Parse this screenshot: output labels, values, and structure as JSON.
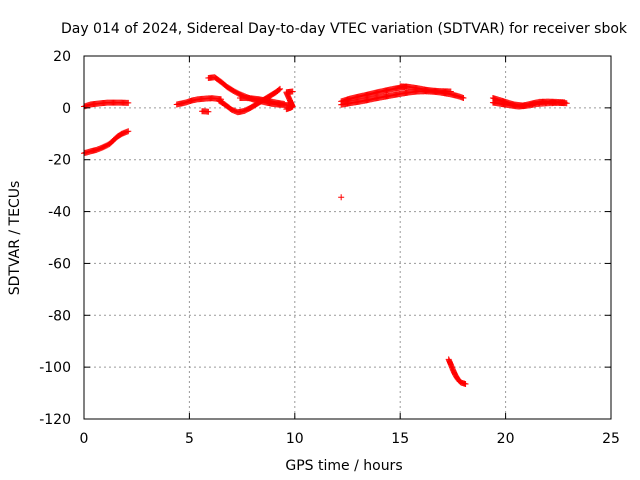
{
  "chart_data": {
    "type": "scatter",
    "title": "Day 014 of 2024, Sidereal Day-to-day VTEC variation (SDTVAR) for receiver sbok",
    "xlabel": "GPS time / hours",
    "ylabel": "SDTVAR / TECUs",
    "xlim": [
      0,
      25
    ],
    "ylim": [
      -120,
      20
    ],
    "xticks": [
      0,
      5,
      10,
      15,
      20,
      25
    ],
    "yticks": [
      -120,
      -100,
      -80,
      -60,
      -40,
      -20,
      0,
      20
    ],
    "grid": true,
    "marker": "+",
    "color": "#ff0000",
    "segments": [
      [
        [
          0.0,
          0.5
        ],
        [
          0.3,
          1.3
        ],
        [
          0.7,
          1.7
        ],
        [
          1.1,
          2.0
        ],
        [
          1.5,
          2.0
        ],
        [
          1.8,
          2.0
        ],
        [
          2.1,
          1.9
        ]
      ],
      [
        [
          0.0,
          -17.5
        ],
        [
          0.3,
          -16.8
        ],
        [
          0.6,
          -16.2
        ],
        [
          0.9,
          -15.2
        ],
        [
          1.2,
          -14.0
        ],
        [
          1.4,
          -12.5
        ],
        [
          1.6,
          -11.0
        ],
        [
          1.8,
          -10.0
        ],
        [
          2.1,
          -9.0
        ]
      ],
      [
        [
          4.4,
          1.3
        ],
        [
          4.8,
          2.0
        ],
        [
          5.1,
          2.8
        ],
        [
          5.4,
          3.3
        ],
        [
          5.8,
          3.6
        ],
        [
          6.1,
          3.7
        ],
        [
          6.5,
          3.3
        ]
      ],
      [
        [
          5.6,
          -1.3
        ],
        [
          5.8,
          -1.4
        ],
        [
          5.9,
          -1.5
        ]
      ],
      [
        [
          5.9,
          11.5
        ],
        [
          6.2,
          11.8
        ],
        [
          6.5,
          10.0
        ],
        [
          6.8,
          8.0
        ],
        [
          7.1,
          6.5
        ],
        [
          7.4,
          5.2
        ],
        [
          7.7,
          4.2
        ],
        [
          8.0,
          3.3
        ],
        [
          8.3,
          2.7
        ],
        [
          8.6,
          2.1
        ],
        [
          8.9,
          1.6
        ],
        [
          9.2,
          1.3
        ],
        [
          9.5,
          1.1
        ],
        [
          9.8,
          1.0
        ]
      ],
      [
        [
          6.4,
          2.8
        ],
        [
          6.7,
          1.2
        ],
        [
          7.0,
          -0.7
        ],
        [
          7.3,
          -1.7
        ],
        [
          7.6,
          -1.2
        ],
        [
          7.9,
          0.0
        ],
        [
          8.2,
          1.5
        ],
        [
          8.5,
          3.0
        ],
        [
          8.8,
          4.5
        ],
        [
          9.1,
          6.0
        ],
        [
          9.3,
          7.3
        ]
      ],
      [
        [
          7.4,
          3.8
        ],
        [
          7.7,
          3.8
        ],
        [
          8.0,
          3.6
        ],
        [
          8.3,
          3.3
        ],
        [
          8.6,
          2.9
        ],
        [
          8.9,
          2.4
        ],
        [
          9.2,
          1.9
        ],
        [
          9.5,
          1.5
        ]
      ],
      [
        [
          9.6,
          -0.5
        ],
        [
          9.8,
          0.0
        ],
        [
          9.9,
          0.5
        ],
        [
          9.6,
          6.0
        ],
        [
          9.8,
          6.2
        ],
        [
          9.9,
          6.3
        ]
      ],
      [
        [
          12.2,
          2.5
        ],
        [
          12.6,
          3.5
        ],
        [
          13.0,
          4.3
        ],
        [
          13.4,
          5.0
        ],
        [
          13.8,
          5.8
        ],
        [
          14.2,
          6.5
        ],
        [
          14.6,
          7.2
        ],
        [
          15.0,
          7.8
        ],
        [
          15.3,
          8.2
        ]
      ],
      [
        [
          12.2,
          1.2
        ],
        [
          12.6,
          1.8
        ],
        [
          13.0,
          2.3
        ],
        [
          13.4,
          2.9
        ],
        [
          13.8,
          3.6
        ],
        [
          14.2,
          4.2
        ],
        [
          14.6,
          4.8
        ],
        [
          15.0,
          5.4
        ],
        [
          15.4,
          5.9
        ],
        [
          15.8,
          6.3
        ],
        [
          16.2,
          6.4
        ],
        [
          16.6,
          6.2
        ],
        [
          17.0,
          5.8
        ],
        [
          17.4,
          5.2
        ],
        [
          17.8,
          4.4
        ],
        [
          18.0,
          3.8
        ]
      ],
      [
        [
          15.0,
          8.3
        ],
        [
          15.4,
          8.1
        ],
        [
          15.8,
          7.6
        ],
        [
          16.2,
          7.0
        ],
        [
          16.6,
          6.6
        ],
        [
          17.0,
          6.4
        ],
        [
          17.4,
          6.3
        ]
      ],
      [
        [
          19.4,
          3.8
        ],
        [
          19.6,
          3.3
        ],
        [
          19.8,
          2.8
        ],
        [
          20.0,
          2.3
        ],
        [
          20.2,
          1.8
        ],
        [
          20.4,
          1.3
        ],
        [
          20.6,
          1.1
        ],
        [
          20.8,
          0.9
        ],
        [
          21.0,
          1.2
        ],
        [
          21.3,
          1.8
        ],
        [
          21.6,
          2.3
        ],
        [
          22.0,
          2.4
        ],
        [
          22.4,
          2.3
        ],
        [
          22.8,
          2.1
        ]
      ],
      [
        [
          19.4,
          2.0
        ],
        [
          19.6,
          1.8
        ],
        [
          19.8,
          1.5
        ],
        [
          20.2,
          1.0
        ],
        [
          20.6,
          0.5
        ],
        [
          21.0,
          0.8
        ],
        [
          21.5,
          1.5
        ],
        [
          22.0,
          1.8
        ],
        [
          22.5,
          1.9
        ],
        [
          22.9,
          1.8
        ]
      ],
      [
        [
          12.2,
          -34.5
        ]
      ],
      [
        [
          17.3,
          -97.0
        ],
        [
          17.4,
          -99.0
        ],
        [
          17.5,
          -101.0
        ],
        [
          17.6,
          -102.8
        ],
        [
          17.7,
          -104.2
        ],
        [
          17.8,
          -105.3
        ],
        [
          17.9,
          -106.0
        ],
        [
          18.1,
          -106.5
        ]
      ]
    ]
  }
}
